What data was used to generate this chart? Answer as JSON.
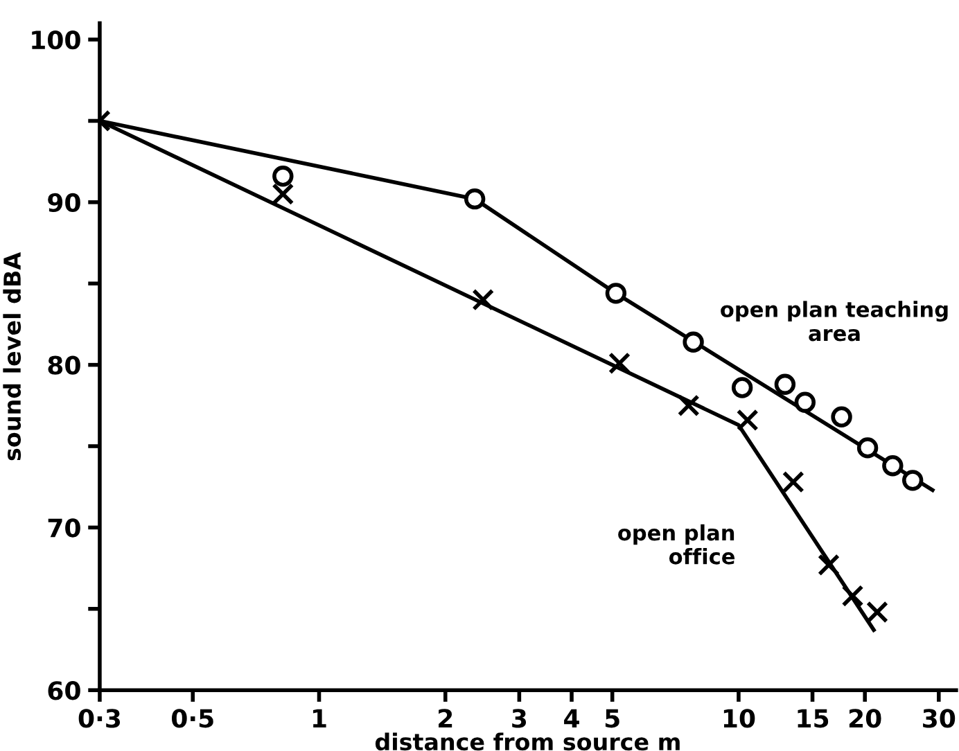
{
  "chart_data": {
    "type": "scatter",
    "xlabel": "distance from source m",
    "ylabel": "sound level dBA",
    "log": "x",
    "xlim": [
      0.3,
      33
    ],
    "ylim": [
      60,
      101
    ],
    "xticks": [
      {
        "value": 0.3,
        "label": "0·3"
      },
      {
        "value": 0.5,
        "label": "0·5"
      },
      1,
      2,
      3,
      4,
      5,
      10,
      15,
      20,
      30
    ],
    "yticks": [
      60,
      {
        "value": 65,
        "label": null
      },
      70,
      {
        "value": 75,
        "label": null
      },
      80,
      {
        "value": 85,
        "label": null
      },
      90,
      {
        "value": 95,
        "label": null
      },
      100
    ],
    "grid": false,
    "legend": false,
    "series": [
      {
        "type": "line",
        "color": "#000000",
        "marker": "none",
        "line_style": "solid",
        "x": [
          0.3,
          2.35,
          5.1,
          29
        ],
        "values": [
          95,
          90.2,
          84.4,
          72.3
        ]
      },
      {
        "type": "line",
        "color": "#000000",
        "marker": "none",
        "line_style": "solid",
        "x": [
          0.3,
          10,
          21
        ],
        "values": [
          95,
          76.3,
          63.7
        ]
      },
      {
        "name": "open plan teaching\narea",
        "color": "#000000",
        "marker": "circle",
        "x": [
          0.82,
          2.35,
          5.1,
          7.8,
          10.2,
          12.9,
          14.4,
          17.6,
          20.3,
          23.3,
          26
        ],
        "values": [
          91.6,
          90.2,
          84.4,
          81.4,
          78.6,
          78.8,
          77.7,
          76.8,
          74.9,
          73.8,
          72.9
        ]
      },
      {
        "name": "open plan\noffice",
        "color": "#000000",
        "marker": "cross",
        "x": [
          0.3,
          0.82,
          2.46,
          5.2,
          7.6,
          10.5,
          13.5,
          16.4,
          18.7,
          21.4
        ],
        "values": [
          95,
          90.5,
          84.0,
          80.1,
          77.5,
          76.6,
          72.8,
          67.7,
          65.8,
          64.8
        ]
      }
    ]
  }
}
